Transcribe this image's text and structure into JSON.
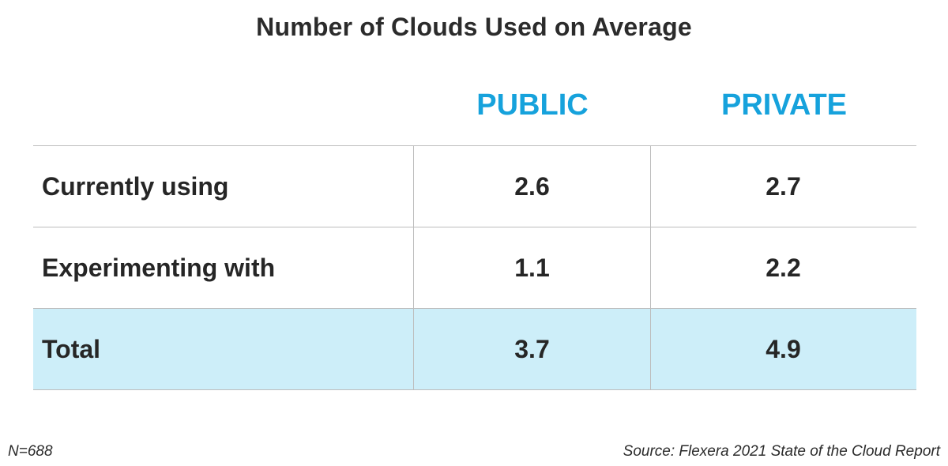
{
  "chart_data": {
    "type": "table",
    "title": "Number of Clouds Used on Average",
    "columns": [
      "PUBLIC",
      "PRIVATE"
    ],
    "rows": [
      {
        "label": "Currently using",
        "values": [
          "2.6",
          "2.7"
        ]
      },
      {
        "label": "Experimenting with",
        "values": [
          "1.1",
          "2.2"
        ]
      },
      {
        "label": "Total",
        "values": [
          "3.7",
          "4.9"
        ],
        "highlighted": true
      }
    ],
    "footnote": "N=688",
    "source": "Source: Flexera 2021 State of the Cloud Report"
  },
  "colors": {
    "header_accent": "#16a2dc",
    "total_row_fill": "#cdeef9",
    "grid_lines": "#bdbdbd",
    "text": "#262626"
  }
}
